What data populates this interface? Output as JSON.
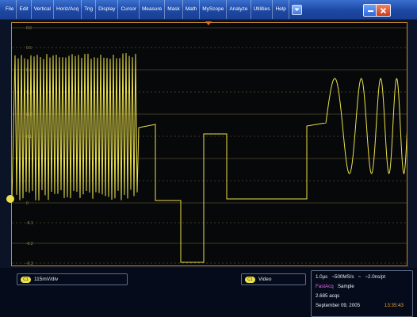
{
  "menu": {
    "items": [
      "File",
      "Edit",
      "Vertical",
      "Horiz/Acq",
      "Trig",
      "Display",
      "Cursor",
      "Measure",
      "Mask",
      "Math",
      "MyScope",
      "Analyze",
      "Utilities",
      "Help"
    ],
    "dropdown_icon": "chevron-down-icon"
  },
  "window": {
    "minimize_icon": "minimize-icon",
    "close_icon": "close-icon"
  },
  "graticule": {
    "labels": [
      "0.6",
      "0.5",
      "0.4",
      "0.3",
      "0.2",
      "0.1",
      "0",
      "-0.1",
      "-0.2",
      "-0.3"
    ]
  },
  "colors": {
    "trace": "#ece14b",
    "border": "#c98a2c",
    "menu": "#2352b8",
    "fastacq": "#e56be0",
    "time": "#e8a236"
  },
  "readouts": {
    "ch1": {
      "badge": "C1",
      "scale": "115mV/div"
    },
    "video": {
      "badge": "C1",
      "label": "Video"
    }
  },
  "acquisition": {
    "timebase": "1.0µs",
    "sample_rate": "~500MS/s",
    "separator": "~",
    "resolution": "~2.0ns/pt",
    "mode": "FastAcq",
    "sample": "Sample",
    "acqs": "2.685 acqs",
    "date": "September 09, 2005",
    "time": "13:35:43"
  }
}
